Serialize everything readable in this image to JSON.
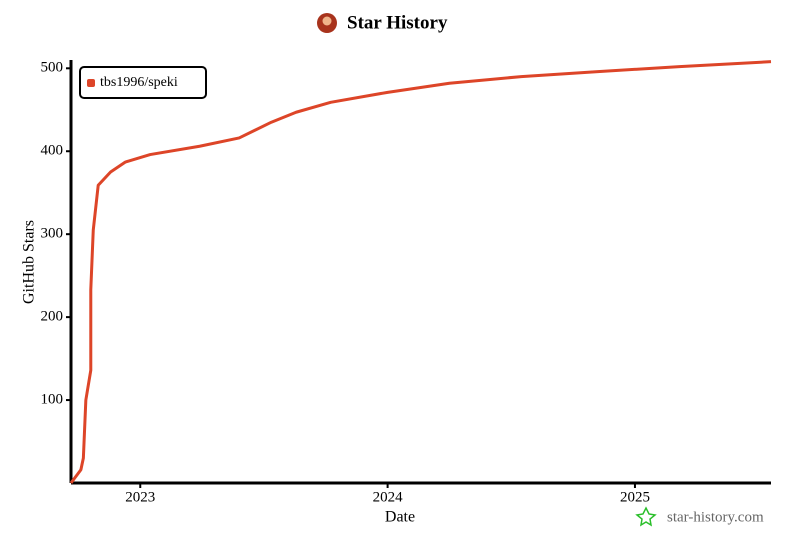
{
  "chart_data": {
    "type": "line",
    "title": "Star History",
    "xlabel": "Date",
    "ylabel": "GitHub Stars",
    "watermark": "star-history.com",
    "x": [
      2022.72,
      2022.76,
      2022.77,
      2022.78,
      2022.8,
      2022.8,
      2022.81,
      2022.83,
      2022.88,
      2022.94,
      2023.04,
      2023.24,
      2023.4,
      2023.53,
      2023.63,
      2023.77,
      2024.0,
      2024.25,
      2024.54,
      2024.85,
      2025.18,
      2025.55
    ],
    "series": [
      {
        "name": "tbs1996/speki",
        "color": "#dd4528",
        "values": [
          0,
          16,
          30,
          100,
          136,
          233,
          305,
          359,
          375,
          387,
          396,
          406,
          416,
          435,
          447,
          459,
          471,
          482,
          490,
          496,
          502,
          508
        ]
      }
    ],
    "xlim": [
      2022.72,
      2025.55
    ],
    "xticks": [
      2023,
      2024,
      2025
    ],
    "ylim": [
      0,
      510
    ],
    "yticks": [
      100,
      200,
      300,
      400,
      500
    ],
    "grid": false,
    "legend": "upper left"
  }
}
